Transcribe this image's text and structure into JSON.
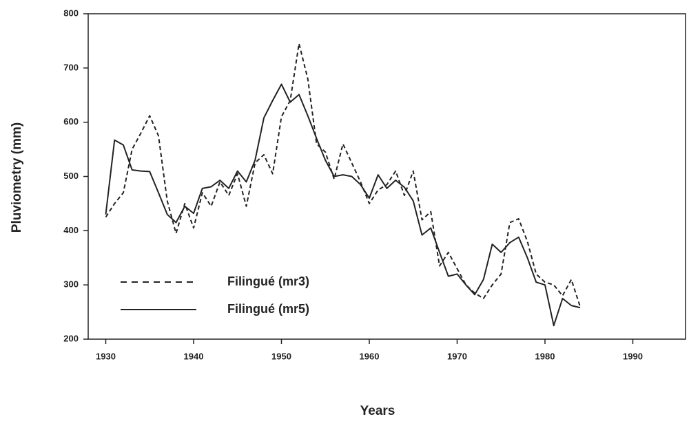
{
  "chart_data": {
    "type": "line",
    "x_label": "Years",
    "y_label": "Pluviometry (mm)",
    "x": [
      1930,
      1931,
      1932,
      1933,
      1934,
      1935,
      1936,
      1937,
      1938,
      1939,
      1940,
      1941,
      1942,
      1943,
      1944,
      1945,
      1946,
      1947,
      1948,
      1949,
      1950,
      1951,
      1952,
      1953,
      1954,
      1955,
      1956,
      1957,
      1958,
      1959,
      1960,
      1961,
      1962,
      1963,
      1964,
      1965,
      1966,
      1967,
      1968,
      1969,
      1970,
      1971,
      1972,
      1973,
      1974,
      1975,
      1976,
      1977,
      1978,
      1979,
      1980,
      1981,
      1982,
      1983,
      1984
    ],
    "series": [
      {
        "name": "Filingué (mr3)",
        "color": "#222222",
        "dashed": true,
        "values": [
          425,
          450,
          470,
          550,
          580,
          612,
          575,
          455,
          395,
          450,
          405,
          470,
          445,
          490,
          465,
          505,
          445,
          525,
          540,
          505,
          610,
          640,
          745,
          680,
          560,
          545,
          495,
          560,
          525,
          490,
          450,
          475,
          485,
          510,
          465,
          510,
          420,
          435,
          335,
          360,
          330,
          300,
          285,
          275,
          300,
          320,
          415,
          422,
          380,
          320,
          305,
          300,
          280,
          310,
          260
        ]
      },
      {
        "name": "Filingué (mr5)",
        "color": "#222222",
        "dashed": false,
        "values": [
          430,
          567,
          558,
          512,
          510,
          509,
          470,
          430,
          415,
          445,
          432,
          478,
          481,
          493,
          478,
          510,
          490,
          530,
          608,
          640,
          670,
          637,
          651,
          612,
          570,
          530,
          500,
          503,
          500,
          485,
          460,
          503,
          478,
          493,
          480,
          455,
          392,
          405,
          360,
          316,
          320,
          300,
          282,
          310,
          375,
          360,
          378,
          388,
          350,
          305,
          300,
          225,
          275,
          262,
          258
        ]
      }
    ],
    "xlim": [
      1928,
      1996
    ],
    "xticks": [
      1930,
      1940,
      1950,
      1960,
      1970,
      1980,
      1990
    ],
    "ylim": [
      200,
      800
    ],
    "yticks": [
      200,
      300,
      400,
      500,
      600,
      700,
      800
    ],
    "grid": false,
    "legend": "lower left"
  }
}
